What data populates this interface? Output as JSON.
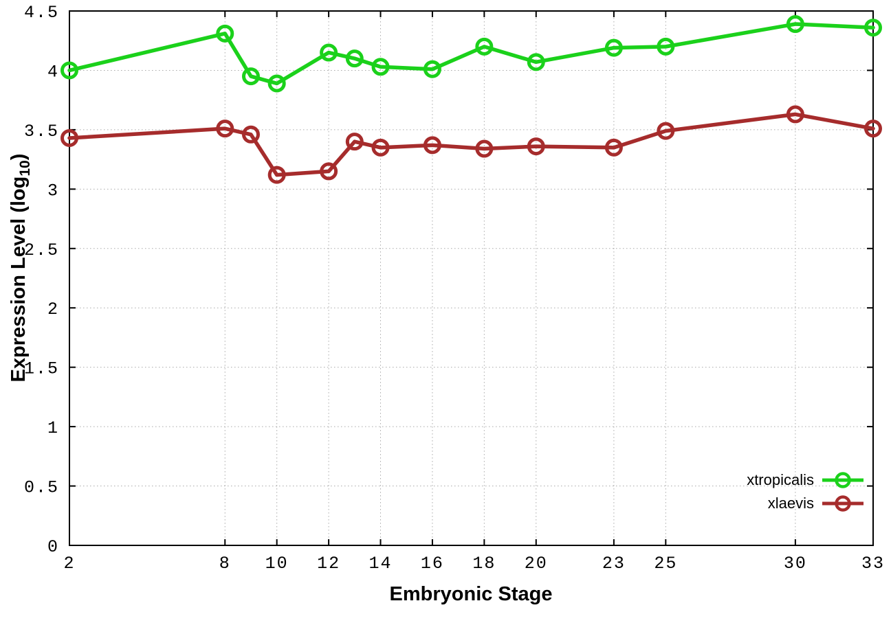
{
  "figure": {
    "background": "#ffffff",
    "xlabel": "Embryonic Stage",
    "ylabel_prefix": "Expression Level (log",
    "ylabel_sub": "10",
    "ylabel_suffix": ")"
  },
  "chart_data": {
    "type": "line",
    "title": "",
    "xlabel": "Embryonic Stage",
    "ylabel": "Expression Level (log10)",
    "xlim": [
      2,
      33
    ],
    "ylim": [
      0,
      4.5
    ],
    "x_ticks": [
      2,
      8,
      10,
      12,
      14,
      16,
      18,
      20,
      23,
      25,
      30,
      33
    ],
    "y_ticks": [
      0,
      0.5,
      1,
      1.5,
      2,
      2.5,
      3,
      3.5,
      4,
      4.5
    ],
    "grid": true,
    "grid_color": "#a9a9a9",
    "border_color": "#000000",
    "legend_position": "bottom-right",
    "x": [
      2,
      8,
      9,
      10,
      12,
      13,
      14,
      16,
      18,
      20,
      23,
      25,
      30,
      33
    ],
    "series": [
      {
        "name": "xtropicalis",
        "color": "#1bd11b",
        "values": [
          4.0,
          4.31,
          3.95,
          3.89,
          4.15,
          4.1,
          4.03,
          4.01,
          4.2,
          4.07,
          4.19,
          4.2,
          4.39,
          4.36
        ]
      },
      {
        "name": "xlaevis",
        "color": "#a62c2c",
        "values": [
          3.43,
          3.51,
          3.46,
          3.12,
          3.15,
          3.4,
          3.35,
          3.37,
          3.34,
          3.36,
          3.35,
          3.49,
          3.63,
          3.51
        ]
      }
    ]
  }
}
